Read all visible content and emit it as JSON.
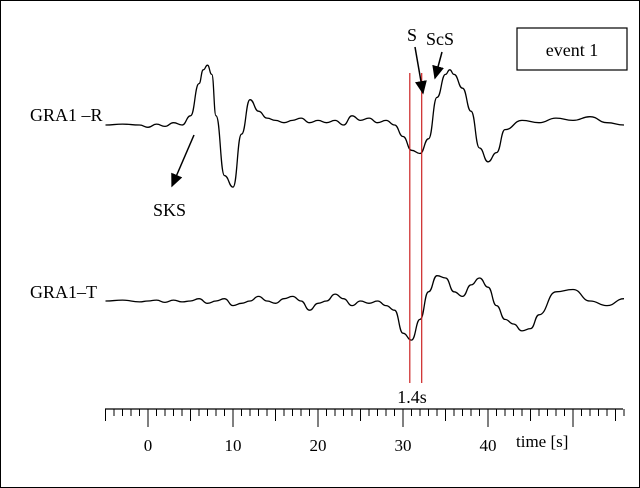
{
  "chart_data": {
    "type": "line",
    "legend_box": {
      "label": "event 1"
    },
    "xlabel": "time [s]",
    "xlim": [
      -5,
      56
    ],
    "x_ticks": [
      0,
      10,
      20,
      30,
      40
    ],
    "grid": false,
    "series": [
      {
        "name": "GRA1 –R",
        "x": [
          -5,
          -3,
          -1,
          0,
          1,
          2,
          3,
          4,
          5,
          6,
          6.5,
          7,
          7.5,
          8,
          9,
          10,
          11,
          12,
          13,
          14,
          15,
          16,
          17,
          18,
          19,
          20,
          21,
          22,
          23,
          24,
          25,
          26,
          27,
          28,
          29,
          30,
          31,
          32,
          33,
          34,
          35,
          35.5,
          36,
          37,
          38,
          39,
          40,
          41,
          42,
          44,
          46,
          48,
          50,
          52,
          54,
          56
        ],
        "y": [
          0,
          0.02,
          0,
          -0.05,
          0.02,
          -0.03,
          0.05,
          0,
          0.2,
          0.9,
          1.2,
          1.3,
          1.1,
          0.2,
          -1.1,
          -1.35,
          -0.2,
          0.55,
          0.3,
          0.15,
          0.1,
          0.05,
          0.1,
          0.15,
          0.05,
          0.1,
          0.05,
          0.1,
          0,
          0.2,
          0.1,
          0.15,
          0.05,
          0.1,
          0,
          -0.25,
          -0.55,
          -0.62,
          -0.3,
          0.6,
          1.1,
          1.2,
          1.1,
          0.8,
          0.3,
          -0.5,
          -0.8,
          -0.6,
          -0.1,
          0.1,
          0.05,
          0.15,
          0.1,
          0.18,
          0.05,
          0
        ]
      },
      {
        "name": "GRA1–T",
        "x": [
          -5,
          -3,
          -1,
          0,
          1,
          2,
          3,
          4,
          5,
          6,
          7,
          8,
          9,
          10,
          11,
          12,
          13,
          14,
          15,
          16,
          17,
          18,
          19,
          20,
          21,
          22,
          23,
          24,
          25,
          26,
          27,
          28,
          29,
          30,
          31,
          32,
          33,
          34,
          35,
          36,
          37,
          38,
          39,
          40,
          41,
          42,
          43,
          44,
          45,
          46,
          48,
          50,
          52,
          54,
          56
        ],
        "y": [
          0,
          0.02,
          -0.02,
          0,
          0.02,
          -0.03,
          0.02,
          -0.02,
          0,
          0.05,
          -0.05,
          0,
          0.05,
          -0.1,
          -0.05,
          0,
          0.1,
          0,
          -0.05,
          0.05,
          0.1,
          0,
          -0.2,
          -0.05,
          0,
          0.15,
          0.05,
          -0.1,
          0,
          -0.05,
          0,
          -0.1,
          -0.2,
          -0.7,
          -0.85,
          -0.4,
          0.2,
          0.55,
          0.5,
          0.2,
          0.1,
          0.35,
          0.5,
          0.3,
          -0.1,
          -0.4,
          -0.5,
          -0.65,
          -0.6,
          -0.3,
          0.2,
          0.25,
          0,
          -0.1,
          0.05
        ]
      }
    ],
    "markers": [
      {
        "x": 30.8,
        "color": "#cc2222"
      },
      {
        "x": 32.2,
        "color": "#cc2222"
      }
    ],
    "annotations": [
      {
        "text": "SKS",
        "series": 0,
        "x": 5.2
      },
      {
        "text": "S",
        "series": 0,
        "x": 32.2
      },
      {
        "text": "ScS",
        "series": 0,
        "x": 34.5
      },
      {
        "text": "1.4s",
        "between_markers": true
      }
    ],
    "colors": {
      "trace": "#000000",
      "marker": "#cc2222"
    }
  }
}
